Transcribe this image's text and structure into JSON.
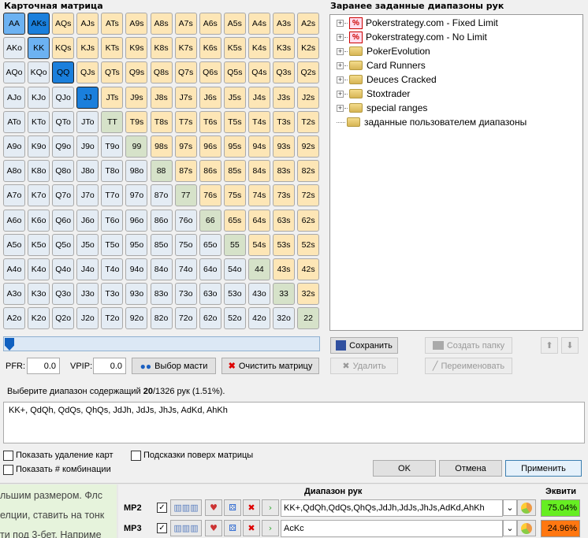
{
  "matrix": {
    "title": "Карточная матрица",
    "rows": [
      [
        "AA",
        "AKs",
        "AQs",
        "AJs",
        "ATs",
        "A9s",
        "A8s",
        "A7s",
        "A6s",
        "A5s",
        "A4s",
        "A3s",
        "A2s"
      ],
      [
        "AKo",
        "KK",
        "KQs",
        "KJs",
        "KTs",
        "K9s",
        "K8s",
        "K7s",
        "K6s",
        "K5s",
        "K4s",
        "K3s",
        "K2s"
      ],
      [
        "AQo",
        "KQo",
        "QQ",
        "QJs",
        "QTs",
        "Q9s",
        "Q8s",
        "Q7s",
        "Q6s",
        "Q5s",
        "Q4s",
        "Q3s",
        "Q2s"
      ],
      [
        "AJo",
        "KJo",
        "QJo",
        "JJ",
        "JTs",
        "J9s",
        "J8s",
        "J7s",
        "J6s",
        "J5s",
        "J4s",
        "J3s",
        "J2s"
      ],
      [
        "ATo",
        "KTo",
        "QTo",
        "JTo",
        "TT",
        "T9s",
        "T8s",
        "T7s",
        "T6s",
        "T5s",
        "T4s",
        "T3s",
        "T2s"
      ],
      [
        "A9o",
        "K9o",
        "Q9o",
        "J9o",
        "T9o",
        "99",
        "98s",
        "97s",
        "96s",
        "95s",
        "94s",
        "93s",
        "92s"
      ],
      [
        "A8o",
        "K8o",
        "Q8o",
        "J8o",
        "T8o",
        "98o",
        "88",
        "87s",
        "86s",
        "85s",
        "84s",
        "83s",
        "82s"
      ],
      [
        "A7o",
        "K7o",
        "Q7o",
        "J7o",
        "T7o",
        "97o",
        "87o",
        "77",
        "76s",
        "75s",
        "74s",
        "73s",
        "72s"
      ],
      [
        "A6o",
        "K6o",
        "Q6o",
        "J6o",
        "T6o",
        "96o",
        "86o",
        "76o",
        "66",
        "65s",
        "64s",
        "63s",
        "62s"
      ],
      [
        "A5o",
        "K5o",
        "Q5o",
        "J5o",
        "T5o",
        "95o",
        "85o",
        "75o",
        "65o",
        "55",
        "54s",
        "53s",
        "52s"
      ],
      [
        "A4o",
        "K4o",
        "Q4o",
        "J4o",
        "T4o",
        "94o",
        "84o",
        "74o",
        "64o",
        "54o",
        "44",
        "43s",
        "42s"
      ],
      [
        "A3o",
        "K3o",
        "Q3o",
        "J3o",
        "T3o",
        "93o",
        "83o",
        "73o",
        "63o",
        "53o",
        "43o",
        "33",
        "32s"
      ],
      [
        "A2o",
        "K2o",
        "Q2o",
        "J2o",
        "T2o",
        "92o",
        "82o",
        "72o",
        "62o",
        "52o",
        "42o",
        "32o",
        "22"
      ]
    ],
    "selected": {
      "AA": "full",
      "KK": "full",
      "AKs": "part",
      "QQ": "part",
      "JJ": "part"
    },
    "colors": {
      "suited": "#fde6b6",
      "offsuit": "#e4ecf4",
      "pair": "#d6e2c9",
      "full": "#6cb2f2",
      "partial": "#1a7fdc"
    }
  },
  "slider": {
    "value": 0
  },
  "pfr": {
    "label": "PFR:",
    "value": "0.0"
  },
  "vpip": {
    "label": "VPIP:",
    "value": "0.0"
  },
  "buttons": {
    "suit": "Выбор масти",
    "clear": "Очистить матрицу",
    "save": "Сохранить",
    "delete": "Удалить",
    "newfolder": "Создать папку",
    "rename": "Переименовать",
    "ok": "OK",
    "cancel": "Отмена",
    "apply": "Применить"
  },
  "tree": {
    "title": "Заранее заданные диапазоны рук",
    "items": [
      {
        "label": "Pokerstrategy.com - Fixed Limit",
        "icon": "percent"
      },
      {
        "label": "Pokerstrategy.com - No Limit",
        "icon": "percent"
      },
      {
        "label": "PokerEvolution",
        "icon": "folder"
      },
      {
        "label": "Card Runners",
        "icon": "folder"
      },
      {
        "label": "Deuces Cracked",
        "icon": "folder"
      },
      {
        "label": "Stoxtrader",
        "icon": "folder"
      },
      {
        "label": "special ranges",
        "icon": "folder"
      },
      {
        "label": "заданные пользователем диапазоны",
        "icon": "user-folder"
      }
    ]
  },
  "summary": {
    "prefix": "Выберите диапазон содержащий ",
    "count": "20",
    "suffix": "/1326 рук (1.51%)."
  },
  "range_text": "KK+, QdQh, QdQs, QhQs, JdJh, JdJs, JhJs, AdKd, AhKh",
  "options": {
    "show_removal": "Показать удаление карт",
    "hints": "Подсказки поверх матрицы",
    "show_combos": "Показать # комбинации"
  },
  "background_text": [
    "льшим размером. Флс",
    "елции, ставить на тонк",
    "ти под 3-бет. Наприме"
  ],
  "players": {
    "range_header": "Диапазон рук",
    "equity_header": "Эквити",
    "rows": [
      {
        "name": "MP2",
        "checked": true,
        "range": "KK+,QdQh,QdQs,QhQs,JdJh,JdJs,JhJs,AdKd,AhKh",
        "equity": "75.04%",
        "color": "#66ee22"
      },
      {
        "name": "MP3",
        "checked": true,
        "range": "AcKc",
        "equity": "24.96%",
        "color": "#ff7711"
      }
    ]
  }
}
